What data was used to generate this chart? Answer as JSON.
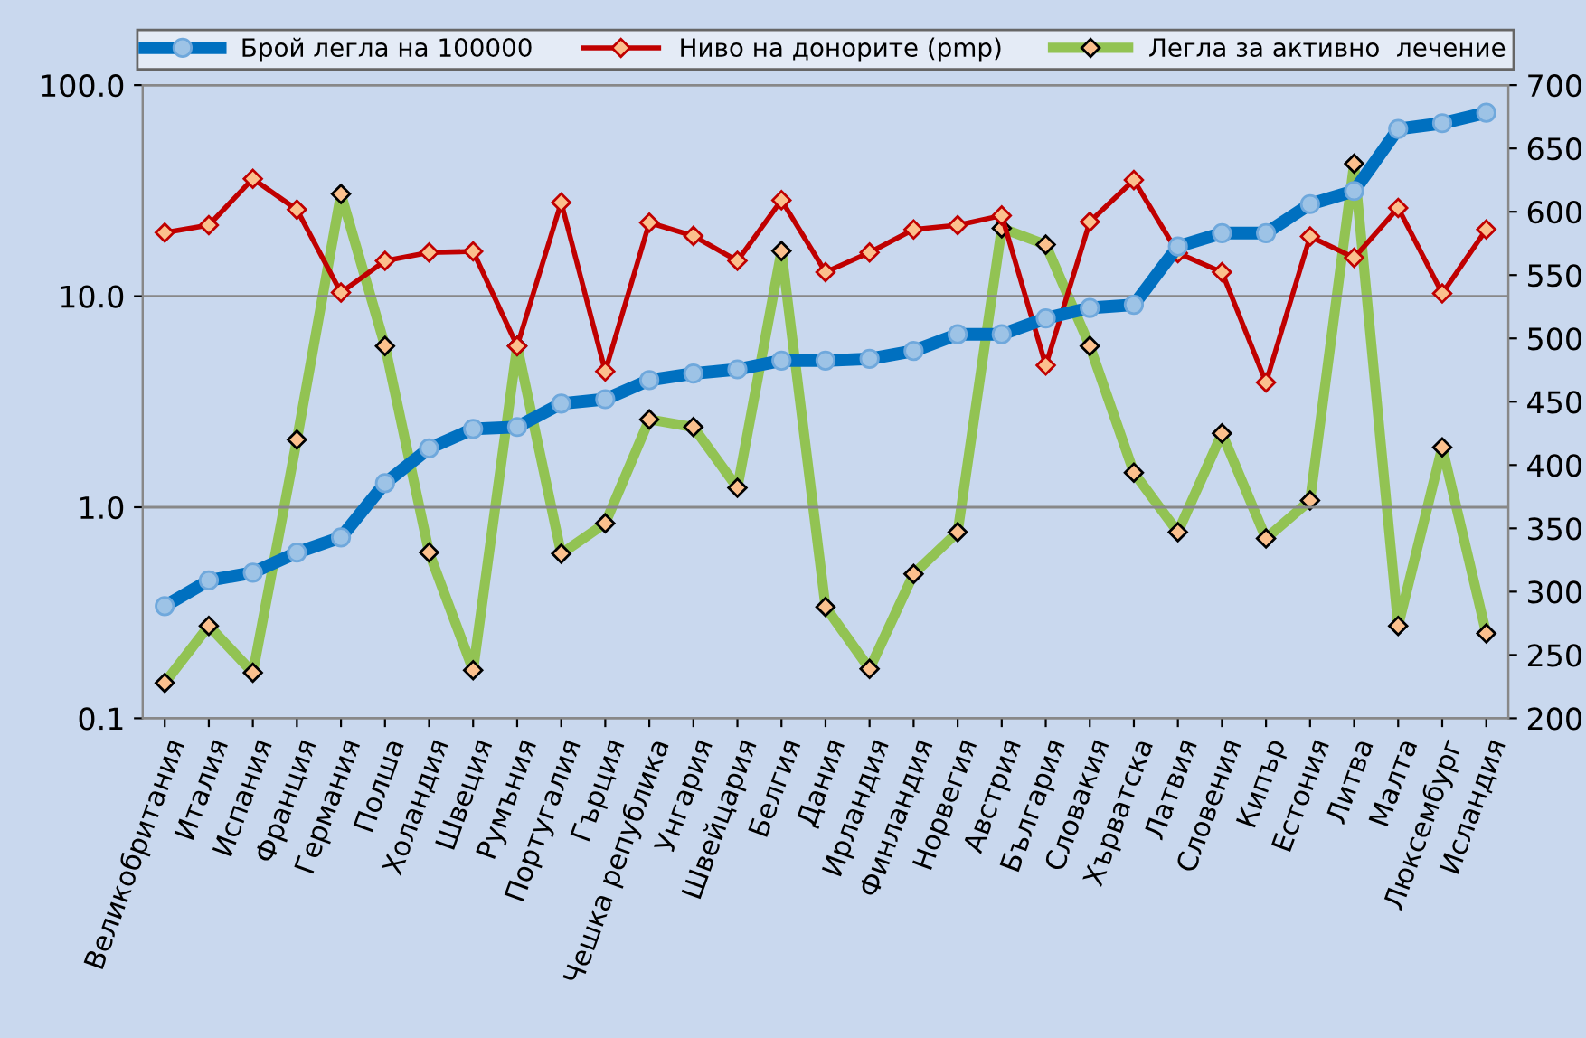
{
  "chart_data": {
    "type": "line",
    "categories": [
      "Великобритания",
      "Италия",
      "Испания",
      "Франция",
      "Германия",
      "Полша",
      "Холандия",
      "Швеция",
      "Румъния",
      "Португалия",
      "Гърция",
      "Чешка република",
      "Унгария",
      "Швейцария",
      "Белгия",
      "Дания",
      "Ирландия",
      "Финландия",
      "Норвегия",
      "Австрия",
      "България",
      "Словакия",
      "Хърватска",
      "Латвия",
      "Словения",
      "Кипър",
      "Естония",
      "Литва",
      "Малта",
      "Люксембург",
      "Исландия"
    ],
    "series": [
      {
        "name": "Брой легла на 100000",
        "color": "#0070c0",
        "marker": "circle",
        "values": [
          0.34,
          0.45,
          0.49,
          0.61,
          0.72,
          1.3,
          1.9,
          2.35,
          2.4,
          3.1,
          3.25,
          4.0,
          4.3,
          4.5,
          4.95,
          4.95,
          5.05,
          5.5,
          6.6,
          6.6,
          7.85,
          8.8,
          9.1,
          17.2,
          19.9,
          19.9,
          27.3,
          31.5,
          62,
          66,
          74
        ]
      },
      {
        "name": "Ниво на донорите (pmp)",
        "color": "#c00000",
        "marker": "diamond",
        "values": [
          20.0,
          21.7,
          36,
          25.7,
          10.4,
          14.7,
          16.1,
          16.3,
          5.8,
          27.8,
          4.4,
          22.3,
          19.3,
          14.7,
          28.5,
          13.0,
          16.1,
          20.7,
          21.7,
          24.1,
          4.7,
          22.5,
          35.5,
          16.0,
          13.0,
          3.9,
          19.2,
          15.2,
          26.2,
          10.3,
          20.7
        ]
      },
      {
        "name": "Легла за активно  лечение",
        "color": "#92c353",
        "marker": "diamond",
        "axis": "y2",
        "values": [
          228,
          273,
          236,
          420,
          614,
          494,
          331,
          238,
          494,
          330,
          354,
          436,
          430,
          382,
          569,
          288,
          239,
          314,
          347,
          587,
          574,
          494,
          394,
          347,
          425,
          342,
          372,
          638,
          273,
          414,
          267
        ]
      }
    ],
    "log": "y",
    "ylim": [
      0.1,
      100
    ],
    "yticks": [
      {
        "value": 0.1,
        "label": "0.1"
      },
      {
        "value": 1,
        "label": "1.0"
      },
      {
        "value": 10,
        "label": "10.0"
      },
      {
        "value": 100,
        "label": "100.0"
      }
    ],
    "y2lim": [
      200,
      700
    ],
    "y2ticks": [
      200,
      250,
      300,
      350,
      400,
      450,
      500,
      550,
      600,
      650,
      700
    ],
    "grid": "y",
    "legend": "top"
  }
}
